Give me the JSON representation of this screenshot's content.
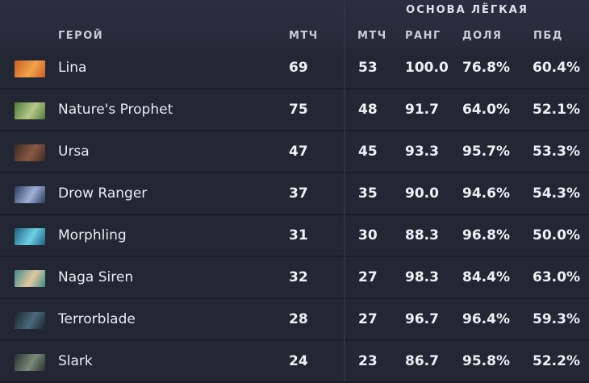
{
  "header": {
    "group_title": "ОСНОВА ЛЁГКАЯ",
    "columns": {
      "hero": "ГЕРОЙ",
      "matches_total": "МТЧ",
      "matches": "МТЧ",
      "rank": "РАНГ",
      "share": "ДОЛЯ",
      "winrate": "ПБД"
    }
  },
  "rows": [
    {
      "hero": "Lina",
      "icon": "lina-portrait-icon",
      "total": "69",
      "matches": "53",
      "rank": "100.0",
      "share": "76.8%",
      "winrate": "60.4%",
      "color_a": "#c8602a",
      "color_b": "#f0a34a"
    },
    {
      "hero": "Nature's Prophet",
      "icon": "natures-prophet-portrait-icon",
      "total": "75",
      "matches": "48",
      "rank": "91.7",
      "share": "64.0%",
      "winrate": "52.1%",
      "color_a": "#4e7a3a",
      "color_b": "#b7c98a"
    },
    {
      "hero": "Ursa",
      "icon": "ursa-portrait-icon",
      "total": "47",
      "matches": "45",
      "rank": "93.3",
      "share": "95.7%",
      "winrate": "53.3%",
      "color_a": "#3a2a24",
      "color_b": "#8a5a44"
    },
    {
      "hero": "Drow Ranger",
      "icon": "drow-ranger-portrait-icon",
      "total": "37",
      "matches": "35",
      "rank": "90.0",
      "share": "94.6%",
      "winrate": "54.3%",
      "color_a": "#2c3a5c",
      "color_b": "#9fb3d6"
    },
    {
      "hero": "Morphling",
      "icon": "morphling-portrait-icon",
      "total": "31",
      "matches": "30",
      "rank": "88.3",
      "share": "96.8%",
      "winrate": "50.0%",
      "color_a": "#1d5f7a",
      "color_b": "#6fd0e8"
    },
    {
      "hero": "Naga Siren",
      "icon": "naga-siren-portrait-icon",
      "total": "32",
      "matches": "27",
      "rank": "98.3",
      "share": "84.4%",
      "winrate": "63.0%",
      "color_a": "#3f8a8a",
      "color_b": "#e0c8a0"
    },
    {
      "hero": "Terrorblade",
      "icon": "terrorblade-portrait-icon",
      "total": "28",
      "matches": "27",
      "rank": "96.7",
      "share": "96.4%",
      "winrate": "59.3%",
      "color_a": "#1c2430",
      "color_b": "#4a6a7a"
    },
    {
      "hero": "Slark",
      "icon": "slark-portrait-icon",
      "total": "24",
      "matches": "23",
      "rank": "86.7",
      "share": "95.8%",
      "winrate": "52.2%",
      "color_a": "#2a3030",
      "color_b": "#7a8a7a"
    }
  ]
}
